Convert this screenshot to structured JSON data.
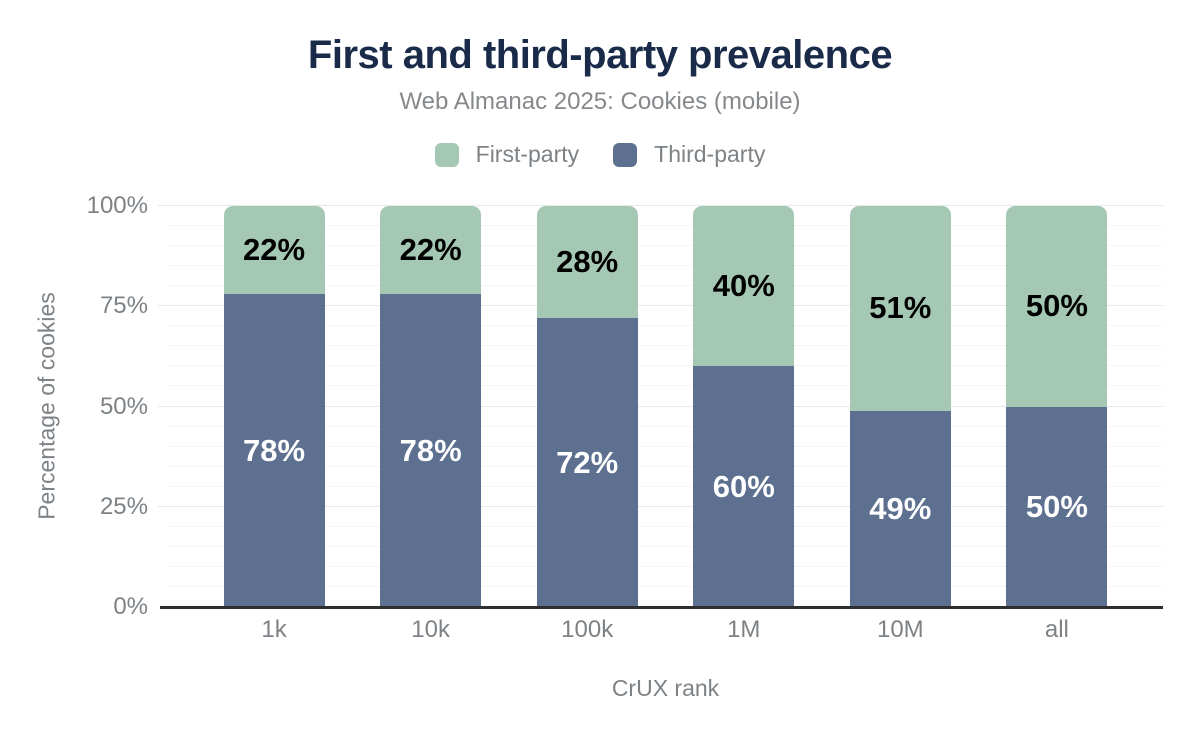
{
  "header": {
    "title": "First and third-party prevalence",
    "subtitle": "Web Almanac 2025: Cookies (mobile)"
  },
  "legend": {
    "items": [
      {
        "label": "First-party",
        "color": "#a5c8b4"
      },
      {
        "label": "Third-party",
        "color": "#5d7090"
      }
    ]
  },
  "chart_data": {
    "type": "bar",
    "stacked": true,
    "title": "First and third-party prevalence",
    "subtitle": "Web Almanac 2025: Cookies (mobile)",
    "xlabel": "CrUX rank",
    "ylabel": "Percentage of cookies",
    "categories": [
      "1k",
      "10k",
      "100k",
      "1M",
      "10M",
      "all"
    ],
    "series": [
      {
        "name": "First-party",
        "color": "#a5c8b4",
        "label_color": "#000000",
        "values": [
          22,
          22,
          28,
          40,
          51,
          50
        ]
      },
      {
        "name": "Third-party",
        "color": "#5d7090",
        "label_color": "#ffffff",
        "values": [
          78,
          78,
          72,
          60,
          49,
          50
        ]
      }
    ],
    "value_suffix": "%",
    "ylim": [
      0,
      100
    ],
    "y_tick_values": [
      0,
      25,
      50,
      75,
      100
    ],
    "y_tick_suffix": "%",
    "grid_step": 5,
    "grid": true,
    "legend_position": "top",
    "colors": {
      "title": "#1a2b49",
      "axis_text": "#7d8286",
      "baseline": "#2d2e2e"
    }
  }
}
